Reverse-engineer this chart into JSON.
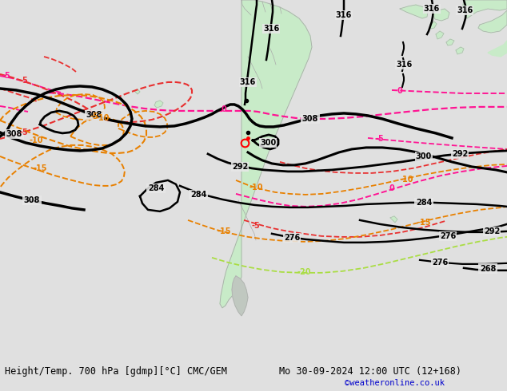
{
  "title_left": "Height/Temp. 700 hPa [gdmp][°C] CMC/GEM",
  "title_right": "Mo 30-09-2024 12:00 UTC (12+168)",
  "credit": "©weatheronline.co.uk",
  "bg_color": "#e0e0e0",
  "land_color": "#c8ebc8",
  "ocean_color": "#e8e8e8",
  "border_color": "#aaaaaa",
  "fig_width": 6.34,
  "fig_height": 4.9,
  "dpi": 100,
  "black": "#000000",
  "pink": "#ff1493",
  "red": "#e83030",
  "orange": "#e88000",
  "green_y": "#aadd44"
}
